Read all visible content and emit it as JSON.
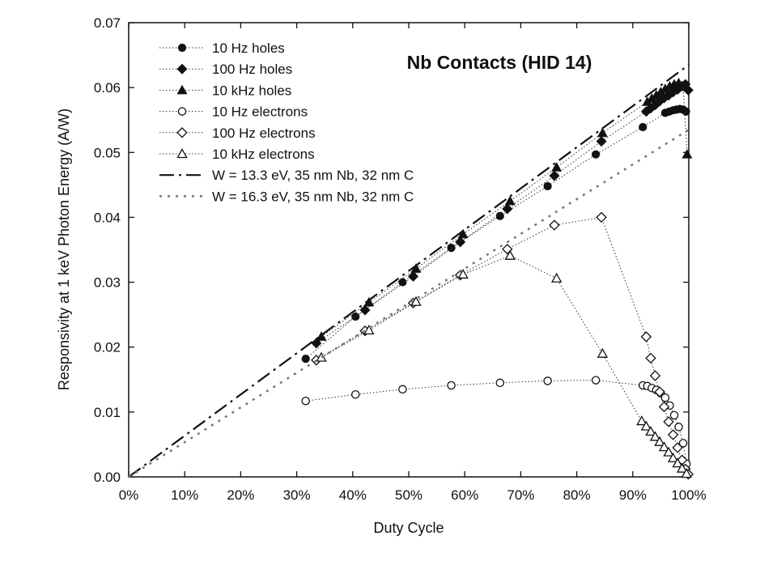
{
  "chart_data": {
    "type": "scatter",
    "title": "Nb Contacts (HID 14)",
    "xlabel": "Duty Cycle",
    "ylabel": "Responsivity at 1 keV Photon Energy (A/W)",
    "xlim": [
      0,
      1
    ],
    "ylim": [
      0,
      0.07
    ],
    "x_ticks": [
      0,
      0.1,
      0.2,
      0.3,
      0.4,
      0.5,
      0.6,
      0.7,
      0.8,
      0.9,
      1.0
    ],
    "x_tick_labels": [
      "0%",
      "10%",
      "20%",
      "30%",
      "40%",
      "50%",
      "60%",
      "70%",
      "80%",
      "90%",
      "100%"
    ],
    "y_ticks": [
      0,
      0.01,
      0.02,
      0.03,
      0.04,
      0.05,
      0.06,
      0.07
    ],
    "y_tick_labels": [
      "0.00",
      "0.01",
      "0.02",
      "0.03",
      "0.04",
      "0.05",
      "0.06",
      "0.07"
    ],
    "grid": false,
    "legend_position": "top-left",
    "series": [
      {
        "name": "10 Hz holes",
        "marker": "circle-filled",
        "line": "dotted",
        "points": [
          [
            0.316,
            0.0182
          ],
          [
            0.405,
            0.0247
          ],
          [
            0.489,
            0.03
          ],
          [
            0.576,
            0.0353
          ],
          [
            0.663,
            0.0402
          ],
          [
            0.748,
            0.0448
          ],
          [
            0.834,
            0.0497
          ],
          [
            0.918,
            0.0539
          ],
          [
            0.958,
            0.0561
          ],
          [
            0.965,
            0.0563
          ],
          [
            0.972,
            0.0565
          ],
          [
            0.978,
            0.0566
          ],
          [
            0.984,
            0.0567
          ],
          [
            0.99,
            0.0566
          ],
          [
            0.995,
            0.0563
          ]
        ]
      },
      {
        "name": "100 Hz holes",
        "marker": "diamond-filled",
        "line": "dotted",
        "points": [
          [
            0.335,
            0.0206
          ],
          [
            0.422,
            0.0257
          ],
          [
            0.508,
            0.0309
          ],
          [
            0.592,
            0.0362
          ],
          [
            0.676,
            0.0413
          ],
          [
            0.76,
            0.0464
          ],
          [
            0.844,
            0.0517
          ],
          [
            0.924,
            0.0563
          ],
          [
            0.932,
            0.0568
          ],
          [
            0.94,
            0.0573
          ],
          [
            0.948,
            0.0579
          ],
          [
            0.956,
            0.0584
          ],
          [
            0.964,
            0.0588
          ],
          [
            0.972,
            0.0593
          ],
          [
            0.98,
            0.0597
          ],
          [
            0.988,
            0.0602
          ],
          [
            0.994,
            0.0605
          ],
          [
            0.999,
            0.0596
          ]
        ]
      },
      {
        "name": "10 kHz holes",
        "marker": "triangle-filled",
        "line": "dotted",
        "points": [
          [
            0.344,
            0.0216
          ],
          [
            0.429,
            0.0269
          ],
          [
            0.513,
            0.0321
          ],
          [
            0.597,
            0.0374
          ],
          [
            0.681,
            0.0425
          ],
          [
            0.764,
            0.0477
          ],
          [
            0.846,
            0.053
          ],
          [
            0.926,
            0.0578
          ],
          [
            0.934,
            0.0583
          ],
          [
            0.942,
            0.0588
          ],
          [
            0.95,
            0.0593
          ],
          [
            0.958,
            0.0598
          ],
          [
            0.966,
            0.0602
          ],
          [
            0.974,
            0.0605
          ],
          [
            0.982,
            0.0607
          ],
          [
            0.99,
            0.0601
          ],
          [
            0.997,
            0.0497
          ]
        ]
      },
      {
        "name": "10 Hz electrons",
        "marker": "circle-open",
        "line": "dotted",
        "points": [
          [
            0.316,
            0.0117
          ],
          [
            0.405,
            0.0127
          ],
          [
            0.489,
            0.0135
          ],
          [
            0.576,
            0.0141
          ],
          [
            0.663,
            0.0145
          ],
          [
            0.748,
            0.0148
          ],
          [
            0.834,
            0.0149
          ],
          [
            0.918,
            0.0141
          ],
          [
            0.926,
            0.014
          ],
          [
            0.934,
            0.0137
          ],
          [
            0.942,
            0.0134
          ],
          [
            0.95,
            0.0129
          ],
          [
            0.958,
            0.0122
          ],
          [
            0.966,
            0.011
          ],
          [
            0.974,
            0.0095
          ],
          [
            0.982,
            0.0077
          ],
          [
            0.99,
            0.0052
          ],
          [
            0.996,
            0.002
          ]
        ]
      },
      {
        "name": "100 Hz electrons",
        "marker": "diamond-open",
        "line": "dotted",
        "points": [
          [
            0.335,
            0.018
          ],
          [
            0.422,
            0.0225
          ],
          [
            0.508,
            0.0268
          ],
          [
            0.592,
            0.0311
          ],
          [
            0.676,
            0.0351
          ],
          [
            0.76,
            0.0388
          ],
          [
            0.844,
            0.04
          ],
          [
            0.924,
            0.0216
          ],
          [
            0.932,
            0.0183
          ],
          [
            0.94,
            0.0156
          ],
          [
            0.948,
            0.0131
          ],
          [
            0.956,
            0.0108
          ],
          [
            0.964,
            0.0085
          ],
          [
            0.972,
            0.0065
          ],
          [
            0.98,
            0.0045
          ],
          [
            0.988,
            0.0026
          ],
          [
            0.994,
            0.0012
          ],
          [
            0.999,
            0.0004
          ]
        ]
      },
      {
        "name": "10 kHz electrons",
        "marker": "triangle-open",
        "line": "dotted",
        "points": [
          [
            0.344,
            0.0184
          ],
          [
            0.429,
            0.0226
          ],
          [
            0.513,
            0.027
          ],
          [
            0.597,
            0.0312
          ],
          [
            0.681,
            0.0341
          ],
          [
            0.764,
            0.0306
          ],
          [
            0.846,
            0.019
          ],
          [
            0.916,
            0.0086
          ],
          [
            0.924,
            0.0078
          ],
          [
            0.932,
            0.007
          ],
          [
            0.94,
            0.0062
          ],
          [
            0.948,
            0.0054
          ],
          [
            0.956,
            0.0046
          ],
          [
            0.964,
            0.0038
          ],
          [
            0.972,
            0.0029
          ],
          [
            0.98,
            0.0021
          ],
          [
            0.988,
            0.0013
          ],
          [
            0.996,
            0.0005
          ]
        ]
      },
      {
        "name": "W = 13.3 eV, 35 nm Nb, 32 nm C",
        "marker": "none",
        "line": "dashdot",
        "points": [
          [
            0,
            0
          ],
          [
            1.0,
            0.0635
          ]
        ]
      },
      {
        "name": "W = 16.3 eV, 35 nm Nb, 32 nm C",
        "marker": "none",
        "line": "gray-dotted",
        "points": [
          [
            0,
            0
          ],
          [
            1.0,
            0.0535
          ]
        ]
      }
    ]
  }
}
